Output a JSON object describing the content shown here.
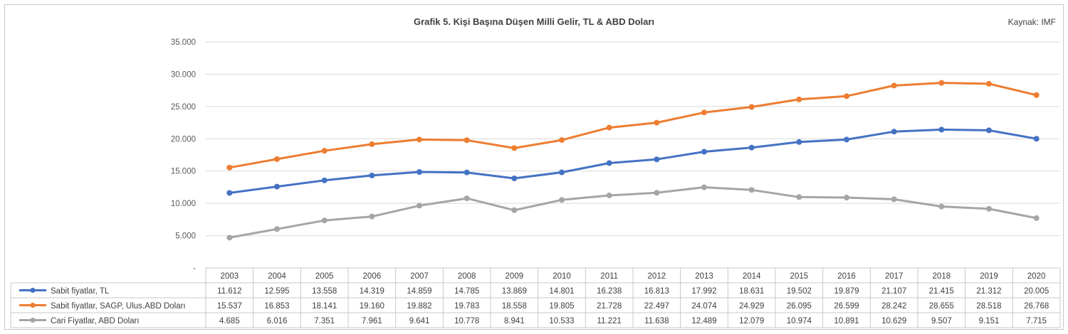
{
  "chart_data": {
    "type": "line",
    "title": "Grafik 5. Kişi Başına Düşen Milli Gelir, TL & ABD Doları",
    "source": "Kaynak: IMF",
    "categories": [
      "2003",
      "2004",
      "2005",
      "2006",
      "2007",
      "2008",
      "2009",
      "2010",
      "2011",
      "2012",
      "2013",
      "2014",
      "2015",
      "2016",
      "2017",
      "2018",
      "2019",
      "2020"
    ],
    "ylim": [
      0,
      35000
    ],
    "y_ticks": [
      "-",
      "5.000",
      "10.000",
      "15.000",
      "20.000",
      "25.000",
      "30.000",
      "35.000"
    ],
    "grid": true,
    "legend": "data-table",
    "series": [
      {
        "name": "Sabit fiyatlar, TL",
        "color": "#4472c4",
        "values": [
          11612,
          12595,
          13558,
          14319,
          14859,
          14785,
          13869,
          14801,
          16238,
          16813,
          17992,
          18631,
          19502,
          19879,
          21107,
          21415,
          21312,
          20005
        ],
        "labels": [
          "11.612",
          "12.595",
          "13.558",
          "14.319",
          "14.859",
          "14.785",
          "13.869",
          "14.801",
          "16.238",
          "16.813",
          "17.992",
          "18.631",
          "19.502",
          "19.879",
          "21.107",
          "21.415",
          "21.312",
          "20.005"
        ]
      },
      {
        "name": "Sabit fiyatlar, SAGP, Ulus.ABD Doları",
        "color": "#ed7d31",
        "values": [
          15537,
          16853,
          18141,
          19160,
          19882,
          19783,
          18558,
          19805,
          21728,
          22497,
          24074,
          24929,
          26095,
          26599,
          28242,
          28655,
          28518,
          26768
        ],
        "labels": [
          "15.537",
          "16.853",
          "18.141",
          "19.160",
          "19.882",
          "19.783",
          "18.558",
          "19.805",
          "21.728",
          "22.497",
          "24.074",
          "24.929",
          "26.095",
          "26.599",
          "28.242",
          "28.655",
          "28.518",
          "26.768"
        ]
      },
      {
        "name": "Cari Fiyatlar, ABD Doları",
        "color": "#a5a5a5",
        "values": [
          4685,
          6016,
          7351,
          7961,
          9641,
          10778,
          8941,
          10533,
          11221,
          11638,
          12489,
          12079,
          10974,
          10891,
          10629,
          9507,
          9151,
          7715
        ],
        "labels": [
          "4.685",
          "6.016",
          "7.351",
          "7.961",
          "9.641",
          "10.778",
          "8.941",
          "10.533",
          "11.221",
          "11.638",
          "12.489",
          "12.079",
          "10.974",
          "10.891",
          "10.629",
          "9.507",
          "9.151",
          "7.715"
        ]
      }
    ]
  }
}
